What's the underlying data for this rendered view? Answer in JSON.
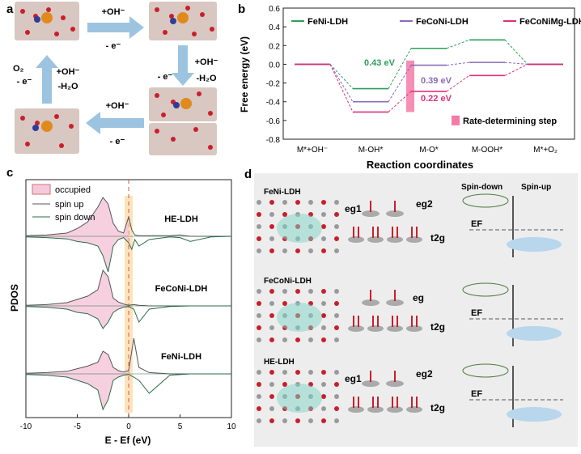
{
  "panel_a": {
    "label": "a",
    "steps": [
      {
        "reactant": "+OH⁻",
        "electron": "- e⁻"
      },
      {
        "reactant": "+OH⁻",
        "byproduct": "-H₂O",
        "electron": "- e⁻"
      },
      {
        "reactant": "+OH⁻",
        "electron": "- e⁻"
      },
      {
        "reactant": "+OH⁻",
        "byproduct": "-H₂O",
        "electron": "- e⁻",
        "product": "O₂"
      }
    ]
  },
  "panel_b": {
    "label": "b",
    "legend": [
      "FeNi-LDH",
      "FeCoNi-LDH",
      "FeCoNiMg-LDH"
    ],
    "rds_label": "Rate-determining step",
    "annotations": [
      "0.43 eV",
      "0.39 eV",
      "0.22 eV"
    ],
    "colors": {
      "FeNi-LDH": "#2e9e5b",
      "FeCoNi-LDH": "#8c6bb8",
      "FeCoNiMg-LDH": "#e0307a",
      "rds": "#f47aa8"
    }
  },
  "panel_c": {
    "label": "c",
    "legend": [
      "occupied",
      "spin up",
      "spin down"
    ],
    "curve_labels": [
      "HE-LDH",
      "FeCoNi-LDH",
      "FeNi-LDH"
    ]
  },
  "panel_d": {
    "label": "d",
    "rows": [
      {
        "name": "FeNi-LDH",
        "levels": [
          "eg1",
          "eg2",
          "t2g"
        ]
      },
      {
        "name": "FeCoNi-LDH",
        "levels": [
          "eg",
          "t2g"
        ]
      },
      {
        "name": "HE-LDH",
        "levels": [
          "eg1",
          "eg2",
          "t2g"
        ]
      }
    ],
    "header_down": "Spin-down",
    "header_up": "Spin-up",
    "fermi": "EF"
  },
  "chart_data": [
    {
      "type": "line",
      "title": "",
      "xlabel": "Reaction coordinates",
      "ylabel": "Free energy (eV)",
      "categories": [
        "M*+OH⁻",
        "M-OH*",
        "M-O*",
        "M-OOH*",
        "M*+O₂"
      ],
      "ylim": [
        -0.8,
        0.6
      ],
      "yticks": [
        -0.8,
        -0.6,
        -0.4,
        -0.2,
        0.0,
        0.2,
        0.4,
        0.6
      ],
      "series": [
        {
          "name": "FeNi-LDH",
          "values": [
            0.0,
            -0.26,
            0.17,
            0.26,
            0.0
          ]
        },
        {
          "name": "FeCoNi-LDH",
          "values": [
            0.0,
            -0.4,
            -0.01,
            0.02,
            0.0
          ]
        },
        {
          "name": "FeCoNiMg-LDH",
          "values": [
            0.0,
            -0.51,
            -0.29,
            -0.12,
            0.0
          ]
        }
      ],
      "legend_position": "top",
      "grid": false
    },
    {
      "type": "area",
      "title": "",
      "xlabel": "E - Ef (eV)",
      "ylabel": "PDOS",
      "xlim": [
        -10,
        10
      ],
      "xticks": [
        -10,
        -5,
        0,
        5,
        10
      ],
      "series": [
        {
          "name": "HE-LDH",
          "x": [
            -10,
            -8,
            -6,
            -5,
            -4,
            -3,
            -2.5,
            -2,
            -1.5,
            -1,
            -0.5,
            0,
            0.3,
            0.6,
            1,
            2,
            4,
            5,
            6,
            8,
            10
          ],
          "up": [
            0.01,
            0.02,
            0.05,
            0.12,
            0.22,
            0.45,
            0.6,
            0.5,
            0.2,
            0.08,
            0.05,
            0.3,
            0.1,
            0.02,
            0.01,
            0.01,
            0.01,
            0.02,
            0.0,
            0.0,
            0.0
          ],
          "down": [
            -0.01,
            -0.02,
            -0.04,
            -0.08,
            -0.1,
            -0.15,
            -0.3,
            -0.55,
            -0.15,
            -0.05,
            -0.02,
            -0.1,
            -0.2,
            -0.05,
            -0.15,
            -0.05,
            -0.01,
            -0.02,
            -0.08,
            -0.01,
            0.0
          ]
        },
        {
          "name": "FeCoNi-LDH",
          "x": [
            -10,
            -8,
            -6,
            -5,
            -4,
            -3,
            -2.5,
            -2,
            -1.5,
            -1,
            -0.5,
            0,
            0.5,
            1,
            2,
            4,
            6,
            8,
            10
          ],
          "up": [
            0.01,
            0.02,
            0.05,
            0.1,
            0.15,
            0.25,
            0.55,
            0.45,
            0.12,
            0.06,
            0.03,
            0.01,
            0.02,
            0.01,
            0.0,
            0.0,
            0.0,
            0.0,
            0.0
          ],
          "down": [
            -0.01,
            -0.02,
            -0.05,
            -0.1,
            -0.12,
            -0.2,
            -0.35,
            -0.25,
            -0.1,
            -0.05,
            -0.02,
            -0.01,
            -0.05,
            -0.25,
            -0.05,
            -0.01,
            0.0,
            0.0,
            0.0
          ]
        },
        {
          "name": "FeNi-LDH",
          "x": [
            -10,
            -8,
            -6,
            -5,
            -4,
            -3,
            -2.5,
            -2,
            -1.5,
            -1,
            -0.5,
            0,
            0.5,
            1,
            2,
            4,
            6,
            8,
            10
          ],
          "up": [
            0.01,
            0.02,
            0.04,
            0.08,
            0.12,
            0.18,
            0.35,
            0.3,
            0.1,
            0.05,
            0.03,
            0.05,
            0.55,
            0.1,
            0.02,
            0.0,
            0.0,
            0.0,
            0.0
          ],
          "down": [
            -0.01,
            -0.02,
            -0.05,
            -0.1,
            -0.15,
            -0.25,
            -0.55,
            -0.4,
            -0.1,
            -0.05,
            -0.02,
            -0.01,
            -0.05,
            -0.1,
            -0.3,
            -0.02,
            0.0,
            0.0,
            0.0
          ]
        }
      ]
    }
  ]
}
